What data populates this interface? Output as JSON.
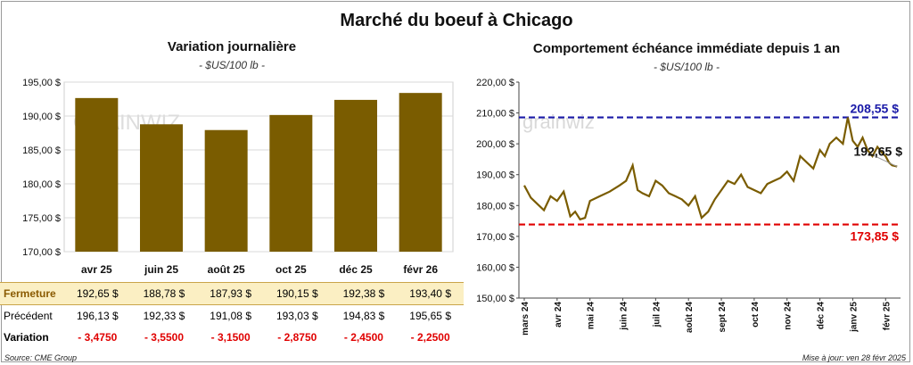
{
  "title": "Marché du boeuf à Chicago",
  "left_chart": {
    "title": "Variation journalière",
    "unit": "- $US/100 lb -",
    "watermark": "GRAINWIZ"
  },
  "right_chart": {
    "title": "Comportement échéance immédiate depuis 1 an",
    "unit": "- $US/100 lb -",
    "watermark": "grainwiz"
  },
  "table": {
    "fermeture_label": "Fermeture",
    "precedent_label": "Précédent",
    "variation_label": "Variation",
    "fermeture": [
      "192,65 $",
      "188,78 $",
      "187,93 $",
      "190,15 $",
      "192,38 $",
      "193,40 $"
    ],
    "precedent": [
      "196,13 $",
      "192,33 $",
      "191,08 $",
      "193,03 $",
      "194,83 $",
      "195,65 $"
    ],
    "variation": [
      "- 3,4750",
      "- 3,5500",
      "- 3,1500",
      "- 2,8750",
      "- 2,4500",
      "- 2,2500"
    ]
  },
  "footer": {
    "source": "Source: CME Group",
    "updated": "Mise à jour: ven 28 févr 2025"
  },
  "colors": {
    "bar": "#7a5c00",
    "line": "#7a5c00",
    "high": "#1a1aa8",
    "low": "#e00000",
    "fermeture_bg": "#fbefc3"
  },
  "chart_data": [
    {
      "type": "bar",
      "categories": [
        "avr 25",
        "juin 25",
        "août 25",
        "oct 25",
        "déc 25",
        "févr 26"
      ],
      "values": [
        192.65,
        188.78,
        187.93,
        190.15,
        192.38,
        193.4
      ],
      "ylim": [
        170,
        195
      ],
      "yticks": [
        170,
        175,
        180,
        185,
        190,
        195
      ],
      "ytick_labels": [
        "170,00 $",
        "175,00 $",
        "180,00 $",
        "185,00 $",
        "190,00 $",
        "195,00 $"
      ],
      "grid": true
    },
    {
      "type": "line",
      "ylim": [
        150,
        220
      ],
      "yticks": [
        150,
        160,
        170,
        180,
        190,
        200,
        210,
        220
      ],
      "ytick_labels": [
        "150,00 $",
        "160,00 $",
        "170,00 $",
        "180,00 $",
        "190,00 $",
        "200,00 $",
        "210,00 $",
        "220,00 $"
      ],
      "x_labels": [
        "mars 24",
        "avr 24",
        "mai 24",
        "juin 24",
        "juil 24",
        "août 24",
        "sept 24",
        "oct 24",
        "nov 24",
        "déc 24",
        "janv 25",
        "févr 25"
      ],
      "series": [
        {
          "x": [
            0,
            0.2,
            0.4,
            0.6,
            0.8,
            1.0,
            1.2,
            1.4,
            1.55,
            1.7,
            1.85,
            2.0,
            2.3,
            2.6,
            2.9,
            3.1,
            3.3,
            3.45,
            3.6,
            3.8,
            4.0,
            4.2,
            4.4,
            4.6,
            4.8,
            5.0,
            5.2,
            5.4,
            5.6,
            5.8,
            6.0,
            6.2,
            6.4,
            6.6,
            6.8,
            7.0,
            7.2,
            7.4,
            7.6,
            7.8,
            8.0,
            8.2,
            8.4,
            8.6,
            8.8,
            9.0,
            9.15,
            9.3,
            9.5,
            9.7,
            9.85,
            10.0,
            10.15,
            10.3,
            10.45,
            10.6,
            10.75,
            10.9,
            11.0,
            11.1,
            11.2,
            11.35
          ],
          "y": [
            186.5,
            182.5,
            180.5,
            178.5,
            183.0,
            181.5,
            184.5,
            176.5,
            178.0,
            175.5,
            176.0,
            181.5,
            183.0,
            184.5,
            186.5,
            188.0,
            193.0,
            185.0,
            184.0,
            183.0,
            188.0,
            186.5,
            184.0,
            183.0,
            182.0,
            180.0,
            183.0,
            176.0,
            178.0,
            182.0,
            185.0,
            188.0,
            187.0,
            190.0,
            186.0,
            185.0,
            184.0,
            187.0,
            188.0,
            189.0,
            191.0,
            188.0,
            196.0,
            194.0,
            192.0,
            198.0,
            196.0,
            200.0,
            202.0,
            200.0,
            208.55,
            201.0,
            199.0,
            202.0,
            198.0,
            196.0,
            199.0,
            197.0,
            196.0,
            194.0,
            193.0,
            192.65
          ]
        }
      ],
      "reference_lines": [
        {
          "value": 208.55,
          "label": "208,55 $",
          "style": "dashed"
        },
        {
          "value": 173.85,
          "label": "173,85 $",
          "style": "dashed"
        }
      ],
      "last_value_label": "192,65 $",
      "grid": false
    }
  ]
}
